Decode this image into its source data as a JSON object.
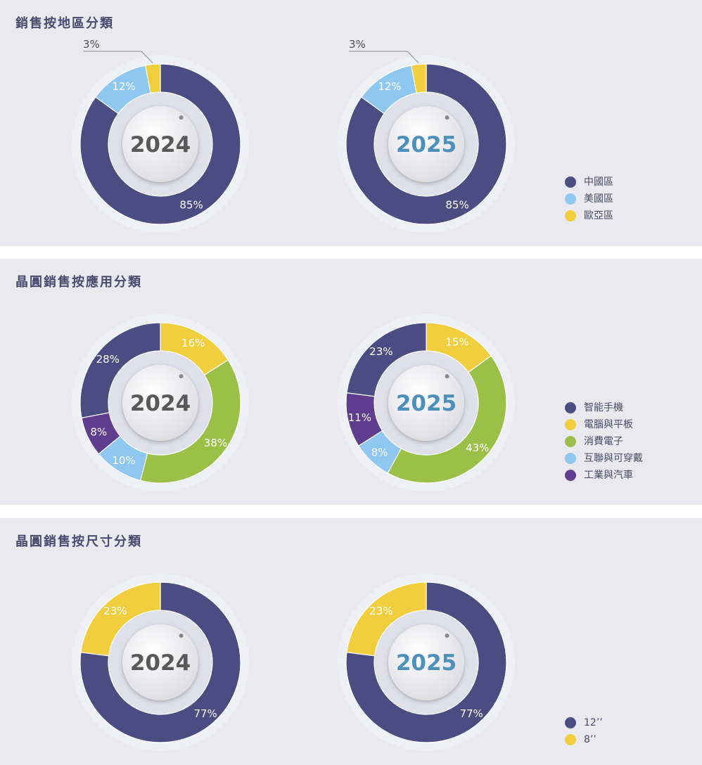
{
  "colors": {
    "dark": "#4b4c82",
    "light": "#8ec7f0",
    "yellow": "#f0ce3e",
    "green": "#9bc048",
    "purple": "#5e3c8e",
    "year2024": "#595959",
    "year2025": "#4f90bb"
  },
  "sections": [
    {
      "title": "銷售按地區分類",
      "legend": [
        {
          "label": "中國區",
          "color": "#4b4c82"
        },
        {
          "label": "美國區",
          "color": "#8ec7f0"
        },
        {
          "label": "歐亞區",
          "color": "#f0ce3e"
        }
      ]
    },
    {
      "title": "晶圓銷售按應用分類",
      "legend": [
        {
          "label": "智能手機",
          "color": "#4b4c82"
        },
        {
          "label": "電腦與平板",
          "color": "#f0ce3e"
        },
        {
          "label": "消費電子",
          "color": "#9bc048"
        },
        {
          "label": "互聯與可穿戴",
          "color": "#8ec7f0"
        },
        {
          "label": "工業與汽車",
          "color": "#5e3c8e"
        }
      ]
    },
    {
      "title": "晶圓銷售按尺寸分類",
      "legend": [
        {
          "label": "12’’",
          "color": "#4b4c82"
        },
        {
          "label": "8’’",
          "color": "#f0ce3e"
        }
      ]
    }
  ],
  "chart_data": [
    {
      "type": "pie",
      "title": "2024",
      "center_label": "2024",
      "categories": [
        "中國區",
        "美國區",
        "歐亞區"
      ],
      "values": [
        85,
        12,
        3
      ],
      "labels": [
        "85%",
        "12%",
        "3%"
      ]
    },
    {
      "type": "pie",
      "title": "2025",
      "center_label": "2025",
      "categories": [
        "中國區",
        "美國區",
        "歐亞區"
      ],
      "values": [
        85,
        12,
        3
      ],
      "labels": [
        "85%",
        "12%",
        "3%"
      ]
    },
    {
      "type": "pie",
      "title": "2024",
      "center_label": "2024",
      "categories": [
        "電腦與平板",
        "消費電子",
        "互聯與可穿戴",
        "工業與汽車",
        "智能手機"
      ],
      "values": [
        16,
        38,
        10,
        8,
        28
      ],
      "labels": [
        "16%",
        "38%",
        "10%",
        "8%",
        "28%"
      ]
    },
    {
      "type": "pie",
      "title": "2025",
      "center_label": "2025",
      "categories": [
        "電腦與平板",
        "消費電子",
        "互聯與可穿戴",
        "工業與汽車",
        "智能手機"
      ],
      "values": [
        15,
        43,
        8,
        11,
        23
      ],
      "labels": [
        "15%",
        "43%",
        "8%",
        "11%",
        "23%"
      ]
    },
    {
      "type": "pie",
      "title": "2024",
      "center_label": "2024",
      "categories": [
        "12’’",
        "8’’"
      ],
      "values": [
        77,
        23
      ],
      "labels": [
        "77%",
        "23%"
      ]
    },
    {
      "type": "pie",
      "title": "2025",
      "center_label": "2025",
      "categories": [
        "12’’",
        "8’’"
      ],
      "values": [
        77,
        23
      ],
      "labels": [
        "77%",
        "23%"
      ]
    }
  ]
}
